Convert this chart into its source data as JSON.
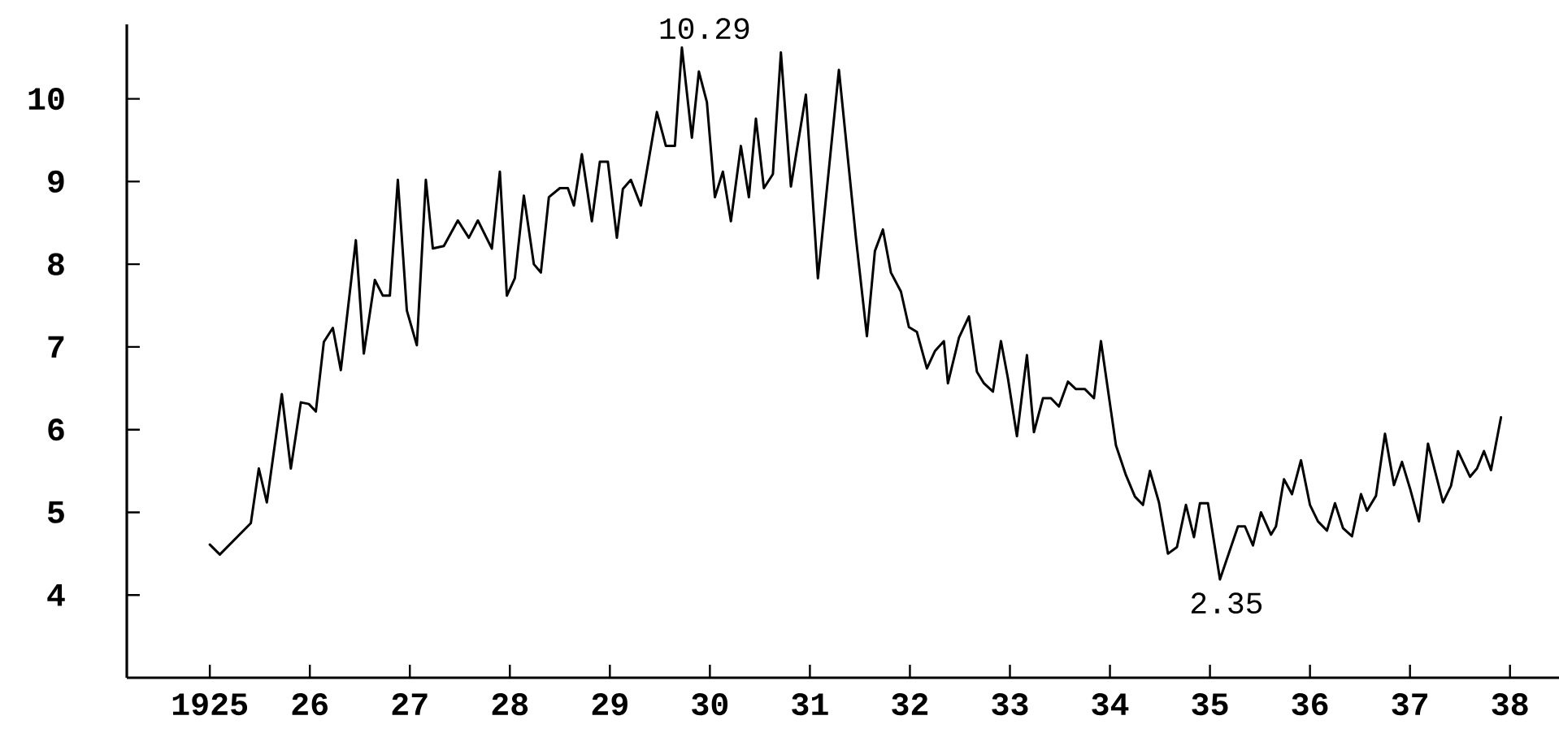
{
  "chart_data": {
    "type": "line",
    "x": [
      1925.0,
      1925.1,
      1925.41,
      1925.49,
      1925.57,
      1925.72,
      1925.81,
      1925.91,
      1925.99,
      1926.06,
      1926.14,
      1926.23,
      1926.31,
      1926.46,
      1926.54,
      1926.65,
      1926.73,
      1926.8,
      1926.88,
      1926.97,
      1927.07,
      1927.16,
      1927.23,
      1927.34,
      1927.48,
      1927.59,
      1927.68,
      1927.82,
      1927.9,
      1927.97,
      1928.05,
      1928.14,
      1928.24,
      1928.31,
      1928.39,
      1928.5,
      1928.58,
      1928.64,
      1928.72,
      1928.82,
      1928.9,
      1928.98,
      1929.07,
      1929.13,
      1929.21,
      1929.31,
      1929.47,
      1929.56,
      1929.65,
      1929.72,
      1929.82,
      1929.89,
      1929.97,
      1930.05,
      1930.13,
      1930.21,
      1930.31,
      1930.39,
      1930.46,
      1930.54,
      1930.63,
      1930.71,
      1930.81,
      1930.96,
      1931.08,
      1931.29,
      1931.46,
      1931.57,
      1931.65,
      1931.73,
      1931.81,
      1931.91,
      1931.99,
      1932.07,
      1932.17,
      1932.25,
      1932.34,
      1932.38,
      1932.49,
      1932.59,
      1932.67,
      1932.74,
      1932.83,
      1932.91,
      1932.98,
      1933.07,
      1933.17,
      1933.24,
      1933.33,
      1933.41,
      1933.49,
      1933.58,
      1933.66,
      1933.75,
      1933.84,
      1933.91,
      1934.06,
      1934.16,
      1934.25,
      1934.33,
      1934.4,
      1934.49,
      1934.58,
      1934.67,
      1934.76,
      1934.84,
      1934.9,
      1934.98,
      1935.1,
      1935.28,
      1935.35,
      1935.43,
      1935.51,
      1935.61,
      1935.66,
      1935.74,
      1935.82,
      1935.91,
      1936.0,
      1936.08,
      1936.17,
      1936.25,
      1936.33,
      1936.42,
      1936.51,
      1936.57,
      1936.66,
      1936.75,
      1936.84,
      1936.92,
      1937.0,
      1937.09,
      1937.18,
      1937.33,
      1937.41,
      1937.48,
      1937.6,
      1937.67,
      1937.74,
      1937.81,
      1937.91
    ],
    "series": [
      {
        "color": "#000000",
        "values": [
          4.61,
          4.49,
          4.87,
          5.53,
          5.12,
          6.43,
          5.53,
          6.33,
          6.31,
          6.22,
          7.06,
          7.23,
          6.72,
          8.29,
          6.92,
          7.81,
          7.62,
          7.62,
          9.02,
          7.44,
          7.02,
          9.02,
          8.19,
          8.22,
          8.53,
          8.32,
          8.53,
          8.19,
          9.12,
          7.62,
          7.83,
          8.83,
          8.0,
          7.9,
          8.81,
          8.92,
          8.92,
          8.71,
          9.33,
          8.52,
          9.24,
          9.24,
          8.32,
          8.91,
          9.02,
          8.71,
          9.84,
          9.43,
          9.43,
          10.62,
          9.53,
          10.33,
          9.96,
          8.81,
          9.12,
          8.52,
          9.43,
          8.81,
          9.76,
          8.92,
          9.09,
          10.56,
          8.94,
          10.05,
          7.83,
          10.35,
          8.32,
          7.13,
          8.16,
          8.42,
          7.9,
          7.67,
          7.24,
          7.18,
          6.74,
          6.95,
          7.07,
          6.56,
          7.11,
          7.37,
          6.7,
          6.56,
          6.46,
          7.07,
          6.62,
          5.92,
          6.9,
          5.97,
          6.38,
          6.38,
          6.28,
          6.58,
          6.49,
          6.49,
          6.38,
          7.07,
          5.81,
          5.45,
          5.19,
          5.09,
          5.5,
          5.12,
          4.5,
          4.58,
          5.09,
          4.7,
          5.11,
          5.11,
          4.19,
          4.83,
          4.83,
          4.6,
          5.0,
          4.73,
          4.83,
          5.4,
          5.22,
          5.63,
          5.09,
          4.89,
          4.78,
          5.11,
          4.81,
          4.71,
          5.22,
          5.02,
          5.2,
          5.95,
          5.33,
          5.61,
          5.29,
          4.89,
          5.83,
          5.12,
          5.32,
          5.74,
          5.43,
          5.53,
          5.74,
          5.51,
          6.15
        ]
      }
    ],
    "xlim": [
      1924.17,
      1938.49
    ],
    "ylim": [
      3.0,
      10.9
    ],
    "xticks": [
      1925,
      {
        "value": 1926,
        "label": "26"
      },
      {
        "value": 1927,
        "label": "27"
      },
      {
        "value": 1928,
        "label": "28"
      },
      {
        "value": 1929,
        "label": "29"
      },
      {
        "value": 1930,
        "label": "30"
      },
      {
        "value": 1931,
        "label": "31"
      },
      {
        "value": 1932,
        "label": "32"
      },
      {
        "value": 1933,
        "label": "33"
      },
      {
        "value": 1934,
        "label": "34"
      },
      {
        "value": 1935,
        "label": "35"
      },
      {
        "value": 1936,
        "label": "36"
      },
      {
        "value": 1937,
        "label": "37"
      },
      {
        "value": 1938,
        "label": "38"
      }
    ],
    "yticks": [
      4,
      5,
      6,
      7,
      8,
      9,
      10
    ],
    "annotations": [
      {
        "text": "10.29",
        "x": 1929.72,
        "y": 10.62
      },
      {
        "text": "2.35",
        "x": 1935.1,
        "y": 4.19
      }
    ]
  }
}
